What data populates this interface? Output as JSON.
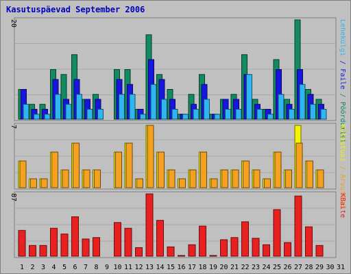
{
  "window": {
    "title": "Kasutuspäevad September 2006"
  },
  "colors": {
    "background": "#c0c0c0",
    "panel": "#c0c0c0",
    "grid": "#a8a8a8",
    "title": "#0000c0",
    "weekday_label": "#000000",
    "weekend_label": "#138a60",
    "visits": "#138a60",
    "pages": "#1616e0",
    "files": "#2fb6f0",
    "hits": "#f4f400",
    "sites": "#f4a020",
    "kbytes": "#e82020"
  },
  "chart_data": [
    {
      "type": "bar",
      "title": "Kasutuspäevad September 2006",
      "axis_max_label": "20",
      "ylim": [
        0,
        20
      ],
      "categories": [
        "1",
        "2",
        "3",
        "4",
        "5",
        "6",
        "7",
        "8",
        "9",
        "10",
        "11",
        "12",
        "13",
        "14",
        "15",
        "16",
        "17",
        "18",
        "19",
        "20",
        "21",
        "22",
        "23",
        "24",
        "25",
        "26",
        "27",
        "28",
        "29",
        "30",
        "31"
      ],
      "weekend_days": [
        "2",
        "3",
        "9",
        "16",
        "17",
        "23",
        "24",
        "30",
        "31"
      ],
      "legend_label": "Pöördumisi / Faile / Lehekülgi",
      "legend": [
        {
          "name": "Pöördumisi",
          "color": "#138a60"
        },
        {
          "name": "Faile",
          "color": "#1616e0"
        },
        {
          "name": "Lehekülgi",
          "color": "#2fb6f0"
        }
      ],
      "series": [
        {
          "name": "Pöördumisi",
          "color": "#138a60",
          "values": [
            6,
            3,
            3,
            10,
            9,
            13,
            4,
            5,
            0,
            10,
            10,
            2,
            17,
            9,
            6,
            1,
            5,
            9,
            1,
            4,
            5,
            13,
            4,
            2,
            12,
            4,
            20,
            6,
            4,
            0,
            0
          ]
        },
        {
          "name": "Faile",
          "color": "#1616e0",
          "values": [
            6,
            2,
            2,
            8,
            4,
            8,
            4,
            4,
            0,
            8,
            7,
            2,
            12,
            8,
            4,
            1,
            3,
            7,
            1,
            4,
            4,
            9,
            3,
            2,
            10,
            3,
            10,
            5,
            3,
            0,
            0
          ]
        },
        {
          "name": "Lehekülgi",
          "color": "#2fb6f0",
          "values": [
            3,
            1,
            1,
            5,
            3,
            5,
            2,
            2,
            0,
            5,
            5,
            1,
            7,
            4,
            2,
            1,
            2,
            4,
            1,
            2,
            2,
            9,
            2,
            1,
            5,
            2,
            7,
            3,
            2,
            0,
            0
          ]
        }
      ]
    },
    {
      "type": "bar",
      "axis_max_label": "7",
      "ylim": [
        0,
        7
      ],
      "legend_label": "Arvuteid / Külastusi",
      "legend": [
        {
          "name": "Arvuteid",
          "color": "#f4a020"
        },
        {
          "name": "Külastusi",
          "color": "#f4f400"
        }
      ],
      "series": [
        {
          "name": "Külastusi",
          "color": "#f4f400",
          "values": [
            3,
            1,
            1,
            4,
            2,
            5,
            2,
            2,
            0,
            4,
            5,
            1,
            7,
            4,
            2,
            1,
            2,
            4,
            1,
            2,
            2,
            3,
            2,
            1,
            4,
            2,
            7,
            3,
            2,
            0,
            0
          ]
        },
        {
          "name": "Arvuteid",
          "color": "#f4a020",
          "values": [
            3,
            1,
            1,
            4,
            2,
            5,
            2,
            2,
            0,
            4,
            5,
            1,
            7,
            4,
            2,
            1,
            2,
            4,
            1,
            2,
            2,
            3,
            2,
            1,
            4,
            2,
            5,
            3,
            2,
            0,
            0
          ]
        }
      ]
    },
    {
      "type": "bar",
      "axis_max_label": "87",
      "ylim": [
        0,
        87
      ],
      "legend_label": "KBaite",
      "legend": [
        {
          "name": "KBaite",
          "color": "#e82020"
        }
      ],
      "series": [
        {
          "name": "KBaite",
          "color": "#e82020",
          "values": [
            36,
            15,
            15,
            39,
            31,
            55,
            24,
            26,
            0,
            47,
            39,
            12,
            87,
            50,
            13,
            1,
            16,
            42,
            1,
            23,
            26,
            48,
            25,
            16,
            65,
            19,
            84,
            41,
            15,
            0,
            0
          ]
        }
      ]
    }
  ]
}
